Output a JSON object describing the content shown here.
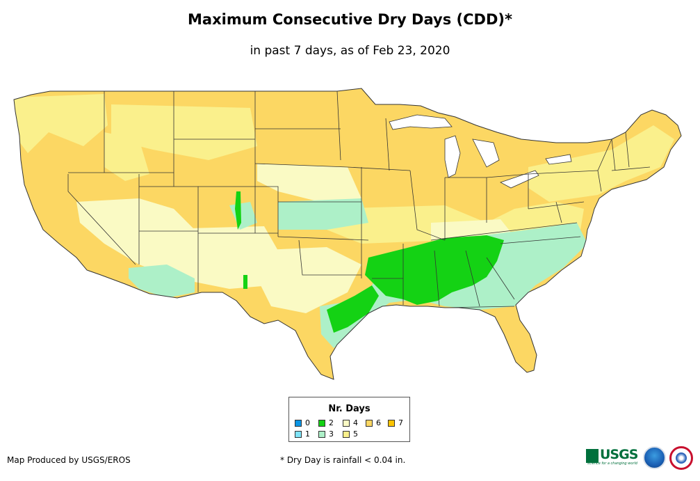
{
  "title": "Maximum Consecutive Dry Days (CDD)*",
  "subtitle": "in past 7 days, as of Feb 23, 2020",
  "legend": {
    "title": "Nr. Days",
    "items": [
      {
        "label": "0",
        "color": "#0a94e4"
      },
      {
        "label": "1",
        "color": "#7fe3f7"
      },
      {
        "label": "2",
        "color": "#14d214"
      },
      {
        "label": "3",
        "color": "#adf0c8"
      },
      {
        "label": "4",
        "color": "#fafac4"
      },
      {
        "label": "5",
        "color": "#faf08c"
      },
      {
        "label": "6",
        "color": "#fcd763"
      },
      {
        "label": "7",
        "color": "#fcc400"
      }
    ]
  },
  "credit": "Map Produced by USGS/EROS",
  "footnote": "* Dry Day is rainfall < 0.04 in.",
  "logos": {
    "usgs": {
      "text": "USGS",
      "tagline": "science for a changing world"
    },
    "noaa": "noaa-logo",
    "nws": "nws-logo"
  },
  "colors": {
    "border": "#333333",
    "background": "#ffffff"
  }
}
